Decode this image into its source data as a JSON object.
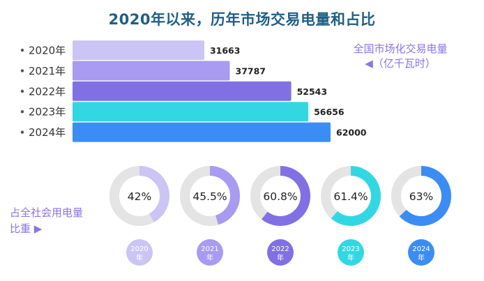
{
  "title": "2020年以来，历年市场交易电量和占比",
  "legend": {
    "line1": "全国市场化交易电量",
    "line2": "◀（亿千瓦时）"
  },
  "side_label": {
    "line1": "占全社会用电量",
    "line2": "比重 ▶"
  },
  "colors": [
    "#cbc5f6",
    "#a99af2",
    "#8170e3",
    "#33d7e4",
    "#3b8df3"
  ],
  "chart_data": [
    {
      "type": "bar",
      "orientation": "horizontal",
      "categories": [
        "2020年",
        "2021年",
        "2022年",
        "2023年",
        "2024年"
      ],
      "values": [
        31663,
        37787,
        52543,
        56656,
        62000
      ],
      "value_labels": [
        "31663",
        "37787",
        "52543",
        "56656",
        "62000"
      ],
      "unit": "亿千瓦时"
    },
    {
      "type": "pie",
      "subtype": "donut",
      "categories": [
        "2020年",
        "2021年",
        "2022年",
        "2023年",
        "2024年"
      ],
      "values": [
        42,
        45.5,
        60.8,
        61.4,
        63
      ],
      "value_labels": [
        "42%",
        "45.5%",
        "60.8%",
        "61.4%",
        "63%"
      ],
      "year_labels": [
        "2020",
        "2021",
        "2022",
        "2023",
        "2024"
      ],
      "year_suffix": "年",
      "unit": "%"
    }
  ]
}
